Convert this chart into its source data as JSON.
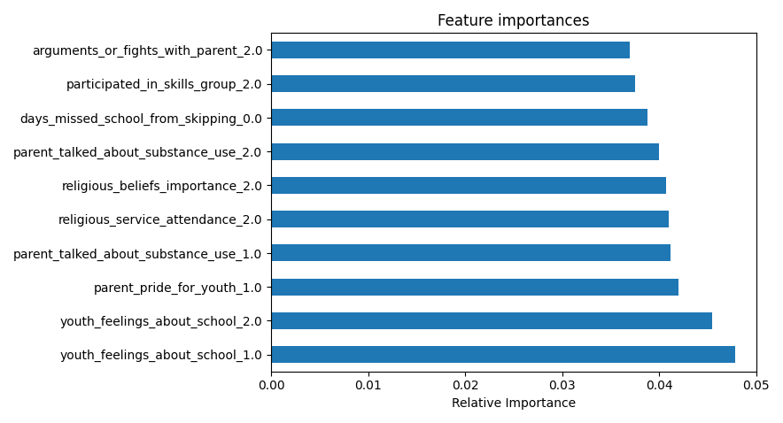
{
  "title": "Feature importances",
  "xlabel": "Relative Importance",
  "categories": [
    "arguments_or_fights_with_parent_2.0",
    "participated_in_skills_group_2.0",
    "days_missed_school_from_skipping_0.0",
    "parent_talked_about_substance_use_2.0",
    "religious_beliefs_importance_2.0",
    "religious_service_attendance_2.0",
    "parent_talked_about_substance_use_1.0",
    "parent_pride_for_youth_1.0",
    "youth_feelings_about_school_2.0",
    "youth_feelings_about_school_1.0"
  ],
  "values": [
    0.037,
    0.0375,
    0.0388,
    0.04,
    0.0407,
    0.041,
    0.0412,
    0.042,
    0.0455,
    0.0478
  ],
  "bar_color": "#1f77b4",
  "bar_height": 0.5,
  "xlim": [
    0,
    0.05
  ],
  "xticks": [
    0.0,
    0.01,
    0.02,
    0.03,
    0.04,
    0.05
  ],
  "title_fontsize": 12,
  "label_fontsize": 10,
  "tick_fontsize": 10,
  "figsize": [
    8.84,
    4.78
  ]
}
